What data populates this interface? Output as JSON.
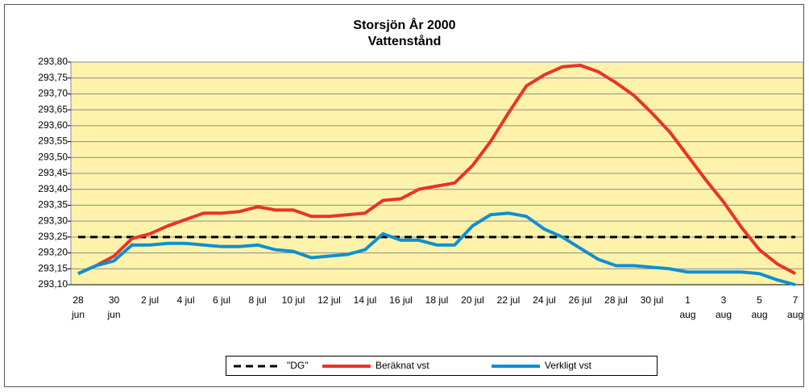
{
  "chart_data": {
    "type": "line",
    "title": "Storsjön År 2000",
    "subtitle": "Vattenstånd",
    "categories": [
      "28 jun",
      null,
      "30 jun",
      null,
      "2 jul",
      null,
      "4 jul",
      null,
      "6 jul",
      null,
      "8 jul",
      null,
      "10 jul",
      null,
      "12 jul",
      null,
      "14 jul",
      null,
      "16 jul",
      null,
      "18 jul",
      null,
      "20 jul",
      null,
      "22 jul",
      null,
      "24 jul",
      null,
      "26 jul",
      null,
      "28 jul",
      null,
      "30 jul",
      null,
      "1 aug",
      null,
      "3 aug",
      null,
      "5 aug",
      null,
      "7 aug"
    ],
    "series": [
      {
        "name": "\"DG\"",
        "color": "#000000",
        "dash": true,
        "values": [
          293.25,
          293.25,
          293.25,
          293.25,
          293.25,
          293.25,
          293.25,
          293.25,
          293.25,
          293.25,
          293.25,
          293.25,
          293.25,
          293.25,
          293.25,
          293.25,
          293.25,
          293.25,
          293.25,
          293.25,
          293.25,
          293.25,
          293.25,
          293.25,
          293.25,
          293.25,
          293.25,
          293.25,
          293.25,
          293.25,
          293.25,
          293.25,
          293.25,
          293.25,
          293.25,
          293.25,
          293.25,
          293.25,
          293.25,
          293.25,
          293.25
        ]
      },
      {
        "name": "Beräknat vst",
        "color": "#e8332a",
        "values": [
          293.135,
          293.16,
          293.19,
          293.245,
          293.26,
          293.285,
          293.305,
          293.325,
          293.325,
          293.33,
          293.345,
          293.335,
          293.335,
          293.315,
          293.315,
          293.32,
          293.325,
          293.365,
          293.37,
          293.4,
          293.41,
          293.42,
          293.475,
          293.55,
          293.64,
          293.725,
          293.76,
          293.785,
          293.79,
          293.77,
          293.735,
          293.695,
          293.64,
          293.58,
          293.505,
          293.43,
          293.36,
          293.28,
          293.21,
          293.165,
          293.135
        ]
      },
      {
        "name": "Verkligt vst",
        "color": "#0f8fd0",
        "values": [
          293.135,
          293.16,
          293.175,
          293.225,
          293.225,
          293.23,
          293.23,
          293.225,
          293.22,
          293.22,
          293.225,
          293.21,
          293.205,
          293.185,
          293.19,
          293.195,
          293.21,
          293.26,
          293.24,
          293.24,
          293.225,
          293.225,
          293.285,
          293.32,
          293.325,
          293.315,
          293.275,
          293.25,
          293.215,
          293.18,
          293.16,
          293.16,
          293.155,
          293.15,
          293.14,
          293.14,
          293.14,
          293.14,
          293.135,
          293.115,
          293.1
        ]
      }
    ],
    "ylim": [
      293.1,
      293.8
    ],
    "yticks": [
      {
        "value": 293.1,
        "label": "293,10"
      },
      {
        "value": 293.15,
        "label": "293,15"
      },
      {
        "value": 293.2,
        "label": "293,20"
      },
      {
        "value": 293.25,
        "label": "293,25"
      },
      {
        "value": 293.3,
        "label": "293,30"
      },
      {
        "value": 293.35,
        "label": "293,35"
      },
      {
        "value": 293.4,
        "label": "293,40"
      },
      {
        "value": 293.45,
        "label": "293,45"
      },
      {
        "value": 293.5,
        "label": "293,50"
      },
      {
        "value": 293.55,
        "label": "293,55"
      },
      {
        "value": 293.6,
        "label": "293,60"
      },
      {
        "value": 293.65,
        "label": "293,65"
      },
      {
        "value": 293.7,
        "label": "293,70"
      },
      {
        "value": 293.75,
        "label": "293,75"
      },
      {
        "value": 293.8,
        "label": "293,80"
      }
    ],
    "grid": true,
    "background": "#fff3ab",
    "legend": "bottom"
  }
}
